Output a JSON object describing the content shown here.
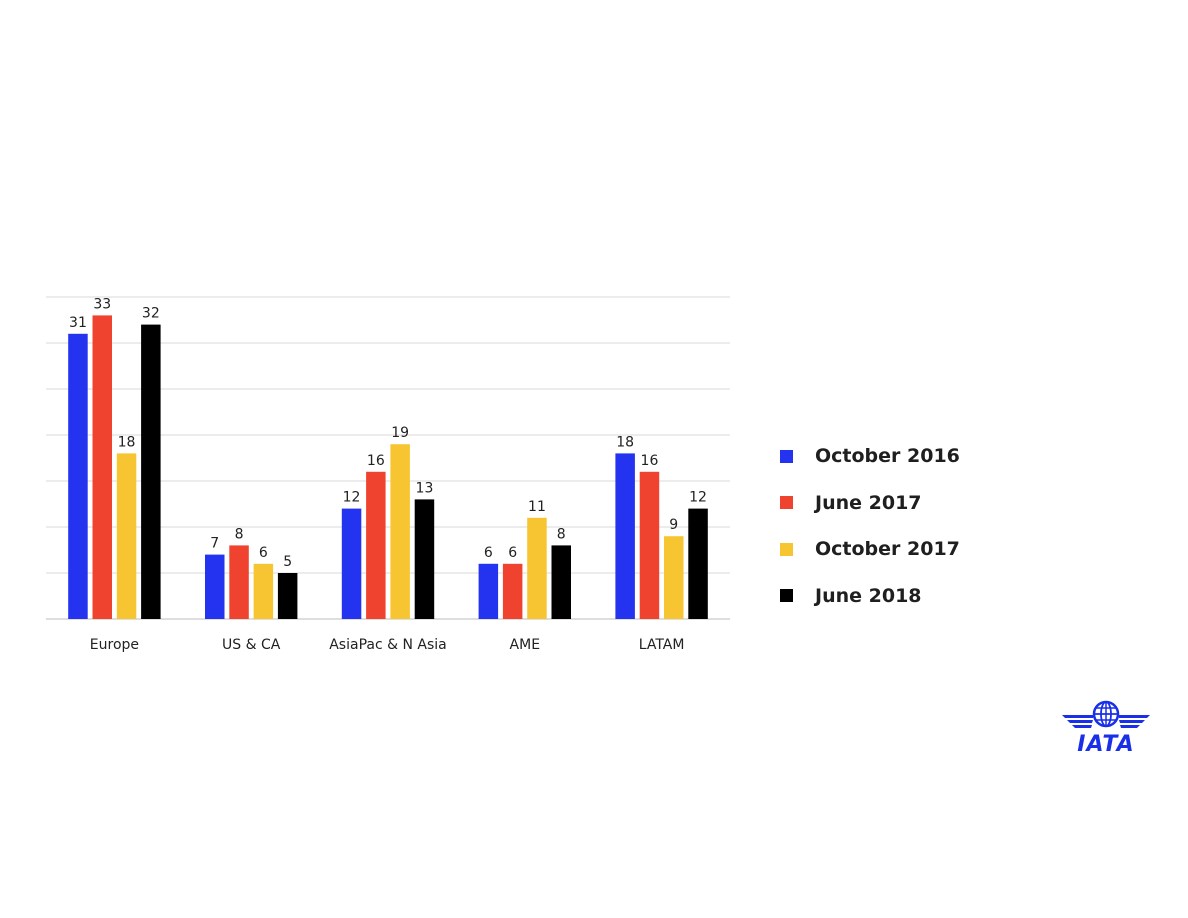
{
  "chart_data": {
    "type": "bar",
    "title": "",
    "xlabel": "",
    "ylabel": "",
    "categories": [
      "Europe",
      "US & CA",
      "AsiaPac & N Asia",
      "AME",
      "LATAM"
    ],
    "series": [
      {
        "name": "October 2016",
        "color": "#2333f0",
        "values": [
          31,
          7,
          12,
          6,
          18
        ]
      },
      {
        "name": "June 2017",
        "color": "#f0432f",
        "values": [
          33,
          8,
          16,
          6,
          16
        ]
      },
      {
        "name": "October 2017",
        "color": "#f7c531",
        "values": [
          18,
          6,
          19,
          11,
          9
        ]
      },
      {
        "name": "June 2018",
        "color": "#000000",
        "values": [
          32,
          5,
          13,
          8,
          12
        ]
      }
    ],
    "ylim": [
      0,
      35
    ],
    "gridlines": true,
    "y_tick_labels": false,
    "data_labels": true,
    "legend_position": "right"
  },
  "logo": {
    "text": "IATA",
    "color": "#1a2fe8"
  }
}
